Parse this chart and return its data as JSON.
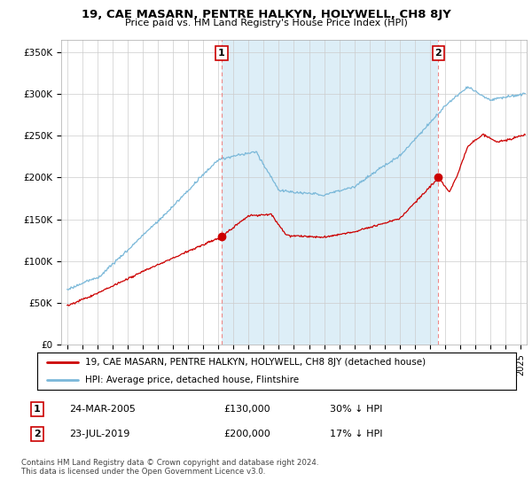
{
  "title": "19, CAE MASARN, PENTRE HALKYN, HOLYWELL, CH8 8JY",
  "subtitle": "Price paid vs. HM Land Registry's House Price Index (HPI)",
  "ylabel_ticks": [
    "£0",
    "£50K",
    "£100K",
    "£150K",
    "£200K",
    "£250K",
    "£300K",
    "£350K"
  ],
  "ytick_values": [
    0,
    50000,
    100000,
    150000,
    200000,
    250000,
    300000,
    350000
  ],
  "ylim": [
    0,
    365000
  ],
  "sale1": {
    "date_num": 2005.22,
    "price": 130000,
    "label": "1",
    "pct": "30%",
    "date_str": "24-MAR-2005"
  },
  "sale2": {
    "date_num": 2019.55,
    "price": 200000,
    "label": "2",
    "pct": "17%",
    "date_str": "23-JUL-2019"
  },
  "hpi_color": "#7ab8d9",
  "hpi_fill_color": "#ddeef7",
  "sale_color": "#cc0000",
  "vline_color": "#ee8888",
  "legend_entry1": "19, CAE MASARN, PENTRE HALKYN, HOLYWELL, CH8 8JY (detached house)",
  "legend_entry2": "HPI: Average price, detached house, Flintshire",
  "footer": "Contains HM Land Registry data © Crown copyright and database right 2024.\nThis data is licensed under the Open Government Licence v3.0.",
  "table_row1": [
    "1",
    "24-MAR-2005",
    "£130,000",
    "30% ↓ HPI"
  ],
  "table_row2": [
    "2",
    "23-JUL-2019",
    "£200,000",
    "17% ↓ HPI"
  ],
  "xlim_start": 1994.6,
  "xlim_end": 2025.4
}
